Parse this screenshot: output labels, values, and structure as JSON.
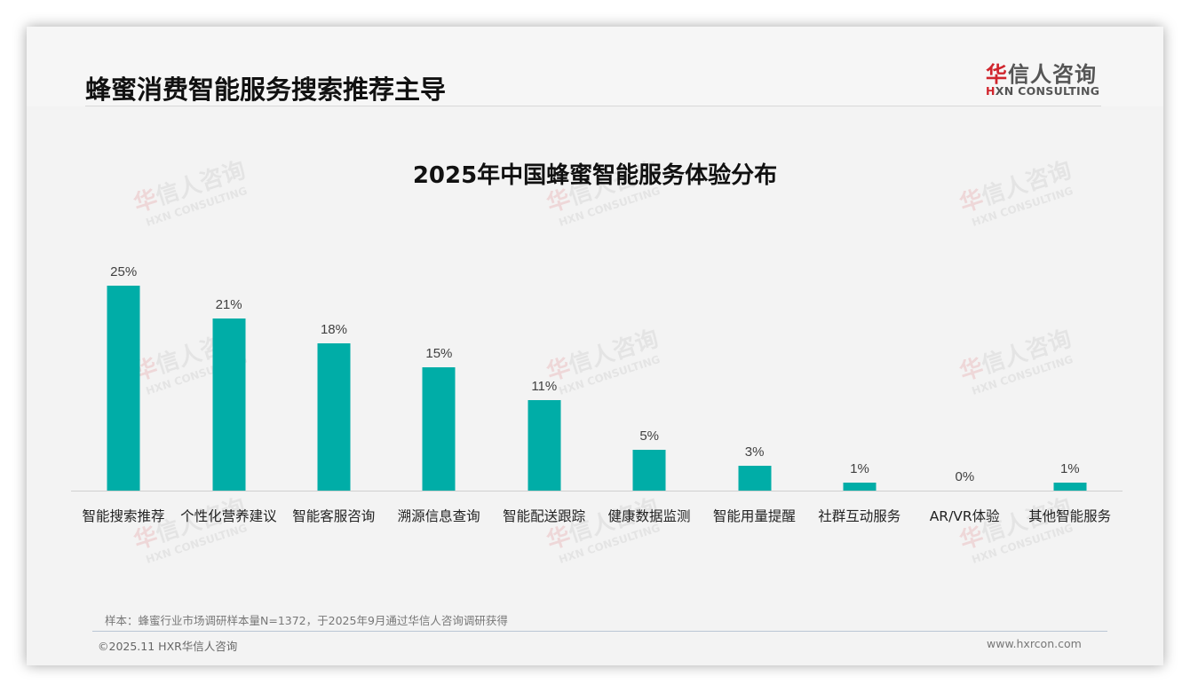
{
  "header": {
    "page_title": "蜂蜜消费智能服务搜索推荐主导",
    "logo": {
      "cn_first": "华",
      "cn_rest": "信人咨询",
      "en_first": "H",
      "en_rest": "XN CONSULTING"
    }
  },
  "watermark": {
    "cn_first": "华",
    "cn_rest": "信人咨询",
    "en": "HXN CONSULTING"
  },
  "chart_data": {
    "type": "bar",
    "title": "2025年中国蜂蜜智能服务体验分布",
    "xlabel": "",
    "ylabel": "",
    "ylim": [
      0,
      25
    ],
    "grid": false,
    "legend": null,
    "bar_color": "#00ada7",
    "categories": [
      "智能搜索推荐",
      "个性化营养建议",
      "智能客服咨询",
      "溯源信息查询",
      "智能配送跟踪",
      "健康数据监测",
      "智能用量提醒",
      "社群互动服务",
      "AR/VR体验",
      "其他智能服务"
    ],
    "values": [
      25,
      21,
      18,
      15,
      11,
      5,
      3,
      1,
      0,
      1
    ],
    "value_labels": [
      "25%",
      "21%",
      "18%",
      "15%",
      "11%",
      "5%",
      "3%",
      "1%",
      "0%",
      "1%"
    ],
    "unit": "%"
  },
  "footer": {
    "source_note": "样本：蜂蜜行业市场调研样本量N=1372，于2025年9月通过华信人咨询调研获得",
    "copyright": "©2025.11 HXR华信人咨询",
    "website": "www.hxrcon.com"
  }
}
